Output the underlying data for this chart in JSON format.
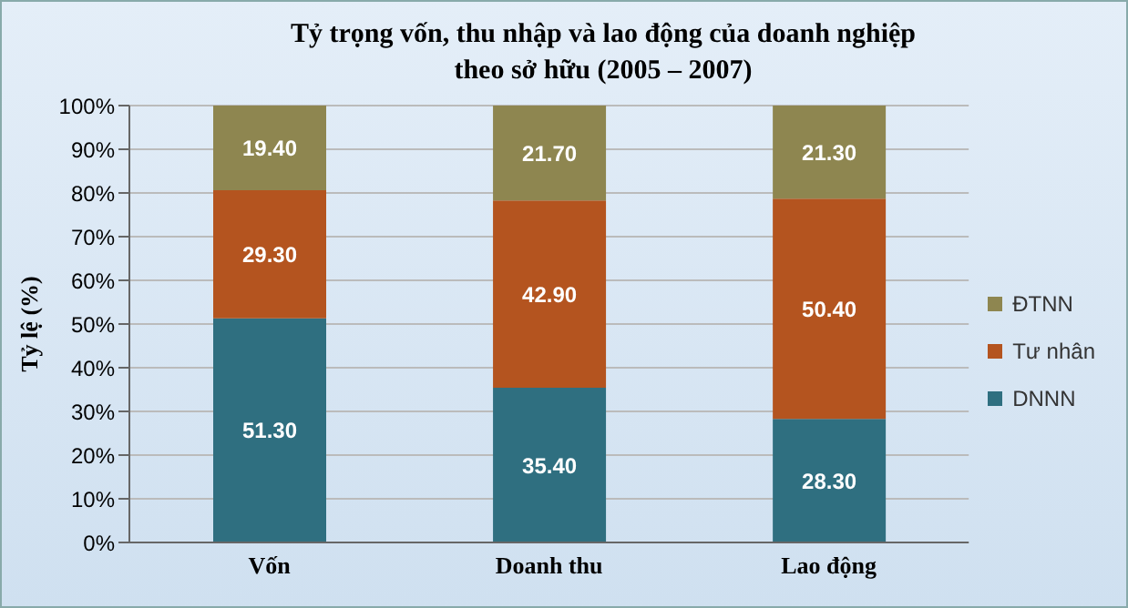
{
  "chart_data": {
    "type": "bar",
    "stacked": true,
    "title": "Tỷ trọng vốn, thu nhập và lao động của doanh nghiệp theo sở hữu (2005 – 2007)",
    "ylabel": "Tỷ lệ (%)",
    "categories": [
      "Vốn",
      "Doanh thu",
      "Lao động"
    ],
    "series": [
      {
        "name": "DNNN",
        "color": "#2f6f80",
        "values": [
          51.3,
          35.4,
          28.3
        ],
        "value_labels": [
          "51.30",
          "35.40",
          "28.30"
        ]
      },
      {
        "name": "Tư nhân",
        "color": "#b4541f",
        "values": [
          29.3,
          42.9,
          50.4
        ],
        "value_labels": [
          "29.30",
          "42.90",
          "50.40"
        ]
      },
      {
        "name": "ĐTNN",
        "color": "#8e8650",
        "values": [
          19.4,
          21.7,
          21.3
        ],
        "value_labels": [
          "19.40",
          "21.70",
          "21.30"
        ]
      }
    ],
    "ylim": [
      0,
      100
    ],
    "yticks": [
      {
        "value": 0,
        "label": "0%"
      },
      {
        "value": 10,
        "label": "10%"
      },
      {
        "value": 20,
        "label": "20%"
      },
      {
        "value": 30,
        "label": "30%"
      },
      {
        "value": 40,
        "label": "40%"
      },
      {
        "value": 50,
        "label": "50%"
      },
      {
        "value": 60,
        "label": "60%"
      },
      {
        "value": 70,
        "label": "70%"
      },
      {
        "value": 80,
        "label": "80%"
      },
      {
        "value": 90,
        "label": "90%"
      },
      {
        "value": 100,
        "label": "100%"
      }
    ],
    "grid": "y",
    "legend": "right"
  }
}
